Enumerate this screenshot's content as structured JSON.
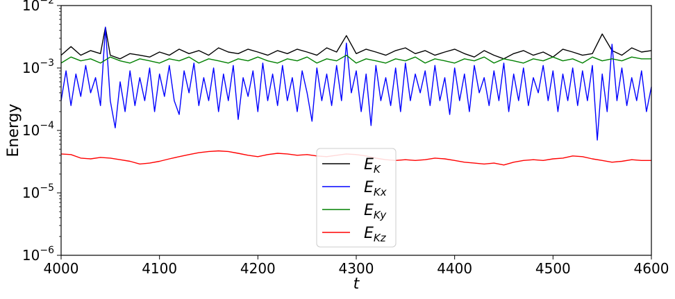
{
  "chart_data": {
    "type": "line",
    "title": "",
    "xlabel": "t",
    "ylabel": "Energy",
    "xlim": [
      4000,
      4600
    ],
    "ylim": [
      1e-06,
      0.01
    ],
    "yscale": "log",
    "x_ticks": [
      4000,
      4100,
      4200,
      4300,
      4400,
      4500,
      4600
    ],
    "x_tick_labels": [
      "4000",
      "4100",
      "4200",
      "4300",
      "4400",
      "4500",
      "4600"
    ],
    "y_ticks": [
      1e-06,
      1e-05,
      0.0001,
      0.001,
      0.01
    ],
    "y_tick_labels": [
      {
        "base": "10",
        "exp": "−6"
      },
      {
        "base": "10",
        "exp": "−5"
      },
      {
        "base": "10",
        "exp": "−4"
      },
      {
        "base": "10",
        "exp": "−3"
      },
      {
        "base": "10",
        "exp": "−2"
      }
    ],
    "grid": false,
    "legend_position": "lower-center",
    "series": [
      {
        "name_main": "E",
        "name_sub": "K",
        "color": "#000000",
        "x": [
          4000,
          4010,
          4020,
          4030,
          4040,
          4045,
          4050,
          4060,
          4070,
          4080,
          4090,
          4100,
          4110,
          4120,
          4130,
          4140,
          4150,
          4160,
          4170,
          4180,
          4190,
          4200,
          4210,
          4220,
          4230,
          4240,
          4250,
          4260,
          4270,
          4280,
          4290,
          4300,
          4310,
          4320,
          4330,
          4340,
          4350,
          4360,
          4370,
          4380,
          4390,
          4400,
          4410,
          4420,
          4430,
          4440,
          4450,
          4460,
          4470,
          4480,
          4490,
          4500,
          4510,
          4520,
          4530,
          4540,
          4550,
          4560,
          4570,
          4580,
          4590,
          4600
        ],
        "y": [
          0.0016,
          0.0022,
          0.0016,
          0.0019,
          0.0017,
          0.0045,
          0.0016,
          0.0014,
          0.0017,
          0.0016,
          0.0015,
          0.0018,
          0.0016,
          0.002,
          0.0017,
          0.0019,
          0.0016,
          0.0021,
          0.0018,
          0.0017,
          0.002,
          0.0018,
          0.0016,
          0.0019,
          0.0017,
          0.002,
          0.0018,
          0.0016,
          0.0021,
          0.0018,
          0.0033,
          0.0017,
          0.002,
          0.0018,
          0.0016,
          0.0019,
          0.0021,
          0.0017,
          0.0019,
          0.0016,
          0.0018,
          0.002,
          0.0017,
          0.0015,
          0.0019,
          0.0016,
          0.0014,
          0.0017,
          0.0019,
          0.0016,
          0.0018,
          0.0015,
          0.002,
          0.0018,
          0.0016,
          0.0017,
          0.0035,
          0.0019,
          0.0016,
          0.0021,
          0.0018,
          0.0019
        ]
      },
      {
        "name_main": "E",
        "name_sub": "Kx",
        "color": "#0000ff",
        "x": [
          4000,
          4005,
          4010,
          4015,
          4020,
          4025,
          4030,
          4035,
          4040,
          4045,
          4050,
          4055,
          4060,
          4065,
          4070,
          4075,
          4080,
          4085,
          4090,
          4095,
          4100,
          4105,
          4110,
          4115,
          4120,
          4125,
          4130,
          4135,
          4140,
          4145,
          4150,
          4155,
          4160,
          4165,
          4170,
          4175,
          4180,
          4185,
          4190,
          4195,
          4200,
          4205,
          4210,
          4215,
          4220,
          4225,
          4230,
          4235,
          4240,
          4245,
          4250,
          4255,
          4260,
          4265,
          4270,
          4275,
          4280,
          4285,
          4290,
          4295,
          4300,
          4305,
          4310,
          4315,
          4320,
          4325,
          4330,
          4335,
          4340,
          4345,
          4350,
          4355,
          4360,
          4365,
          4370,
          4375,
          4380,
          4385,
          4390,
          4395,
          4400,
          4405,
          4410,
          4415,
          4420,
          4425,
          4430,
          4435,
          4440,
          4445,
          4450,
          4455,
          4460,
          4465,
          4470,
          4475,
          4480,
          4485,
          4490,
          4495,
          4500,
          4505,
          4510,
          4515,
          4520,
          4525,
          4530,
          4535,
          4540,
          4545,
          4550,
          4555,
          4560,
          4565,
          4570,
          4575,
          4580,
          4585,
          4590,
          4595,
          4600
        ],
        "y": [
          0.0003,
          0.0009,
          0.00025,
          0.0008,
          0.00035,
          0.0011,
          0.0004,
          0.0007,
          0.00025,
          0.0045,
          0.0003,
          0.00011,
          0.0006,
          0.0002,
          0.0009,
          0.00025,
          0.0007,
          0.0003,
          0.001,
          0.0002,
          0.0008,
          0.00035,
          0.0011,
          0.0003,
          0.00018,
          0.0009,
          0.0004,
          0.0012,
          0.00025,
          0.0007,
          0.0003,
          0.001,
          0.0002,
          0.0008,
          0.0003,
          0.0011,
          0.00015,
          0.0007,
          0.00035,
          0.0009,
          0.0002,
          0.0012,
          0.0003,
          0.0008,
          0.00025,
          0.0011,
          0.0003,
          0.0007,
          0.0002,
          0.0009,
          0.0004,
          0.00014,
          0.001,
          0.0003,
          0.0008,
          0.00025,
          0.0011,
          0.0003,
          0.0025,
          0.0004,
          0.0009,
          0.0002,
          0.0008,
          0.00012,
          0.0011,
          0.0003,
          0.0007,
          0.00025,
          0.001,
          0.0002,
          0.0012,
          0.0003,
          0.0008,
          0.0004,
          0.0009,
          0.00025,
          0.0011,
          0.0003,
          0.0007,
          0.00018,
          0.001,
          0.0003,
          0.0008,
          0.0002,
          0.0011,
          0.0004,
          0.0007,
          0.00025,
          0.0009,
          0.0003,
          0.0012,
          0.0002,
          0.0008,
          0.0003,
          0.001,
          0.00025,
          0.0007,
          0.0004,
          0.0011,
          0.0003,
          0.0009,
          0.0002,
          0.0008,
          0.0003,
          0.001,
          0.00025,
          0.0009,
          0.0003,
          0.0011,
          7e-05,
          0.0008,
          0.0002,
          0.0024,
          0.0003,
          0.001,
          0.00025,
          0.0007,
          0.0003,
          0.0009,
          0.0002,
          0.0005
        ]
      },
      {
        "name_main": "E",
        "name_sub": "Ky",
        "color": "#008000",
        "x": [
          4000,
          4010,
          4020,
          4030,
          4040,
          4050,
          4060,
          4070,
          4080,
          4090,
          4100,
          4110,
          4120,
          4130,
          4140,
          4150,
          4160,
          4170,
          4180,
          4190,
          4200,
          4210,
          4220,
          4230,
          4240,
          4250,
          4260,
          4270,
          4280,
          4290,
          4300,
          4310,
          4320,
          4330,
          4340,
          4350,
          4360,
          4370,
          4380,
          4390,
          4400,
          4410,
          4420,
          4430,
          4440,
          4450,
          4460,
          4470,
          4480,
          4490,
          4500,
          4510,
          4520,
          4530,
          4540,
          4550,
          4560,
          4570,
          4580,
          4590,
          4600
        ],
        "y": [
          0.0012,
          0.0015,
          0.0013,
          0.0014,
          0.0012,
          0.0015,
          0.0013,
          0.0012,
          0.0014,
          0.0013,
          0.0012,
          0.0014,
          0.0013,
          0.0015,
          0.0012,
          0.0014,
          0.0013,
          0.0012,
          0.0014,
          0.0013,
          0.0015,
          0.0013,
          0.0012,
          0.0014,
          0.0013,
          0.0015,
          0.0012,
          0.0014,
          0.0013,
          0.0016,
          0.0012,
          0.0014,
          0.0013,
          0.0012,
          0.0014,
          0.0013,
          0.0015,
          0.0012,
          0.0014,
          0.0013,
          0.0012,
          0.0014,
          0.0013,
          0.0015,
          0.0012,
          0.0014,
          0.0013,
          0.0012,
          0.0014,
          0.0013,
          0.0015,
          0.0013,
          0.0014,
          0.0012,
          0.0015,
          0.0013,
          0.0014,
          0.0013,
          0.0015,
          0.0014,
          0.0014
        ]
      },
      {
        "name_main": "E",
        "name_sub": "Kz",
        "color": "#ff0000",
        "x": [
          4000,
          4010,
          4020,
          4030,
          4040,
          4050,
          4060,
          4070,
          4080,
          4090,
          4100,
          4110,
          4120,
          4130,
          4140,
          4150,
          4160,
          4170,
          4180,
          4190,
          4200,
          4210,
          4220,
          4230,
          4240,
          4250,
          4260,
          4270,
          4280,
          4290,
          4300,
          4310,
          4320,
          4330,
          4340,
          4350,
          4360,
          4370,
          4380,
          4390,
          4400,
          4410,
          4420,
          4430,
          4440,
          4450,
          4460,
          4470,
          4480,
          4490,
          4500,
          4510,
          4520,
          4530,
          4540,
          4550,
          4560,
          4570,
          4580,
          4590,
          4600
        ],
        "y": [
          4.2e-05,
          4.1e-05,
          3.6e-05,
          3.5e-05,
          3.7e-05,
          3.6e-05,
          3.4e-05,
          3.2e-05,
          2.9e-05,
          3e-05,
          3.2e-05,
          3.5e-05,
          3.8e-05,
          4.1e-05,
          4.4e-05,
          4.6e-05,
          4.7e-05,
          4.6e-05,
          4.3e-05,
          4e-05,
          3.8e-05,
          4.1e-05,
          4.3e-05,
          4.2e-05,
          4e-05,
          4.1e-05,
          3.9e-05,
          3.8e-05,
          4e-05,
          4.2e-05,
          4.1e-05,
          3.9e-05,
          3.6e-05,
          3.4e-05,
          3.3e-05,
          3.4e-05,
          3.3e-05,
          3.4e-05,
          3.6e-05,
          3.5e-05,
          3.3e-05,
          3.1e-05,
          3e-05,
          2.9e-05,
          3e-05,
          2.8e-05,
          3.1e-05,
          3.3e-05,
          3.4e-05,
          3.3e-05,
          3.5e-05,
          3.6e-05,
          3.9e-05,
          3.8e-05,
          3.5e-05,
          3.3e-05,
          3.1e-05,
          3.2e-05,
          3.4e-05,
          3.3e-05,
          3.3e-05
        ]
      }
    ]
  }
}
